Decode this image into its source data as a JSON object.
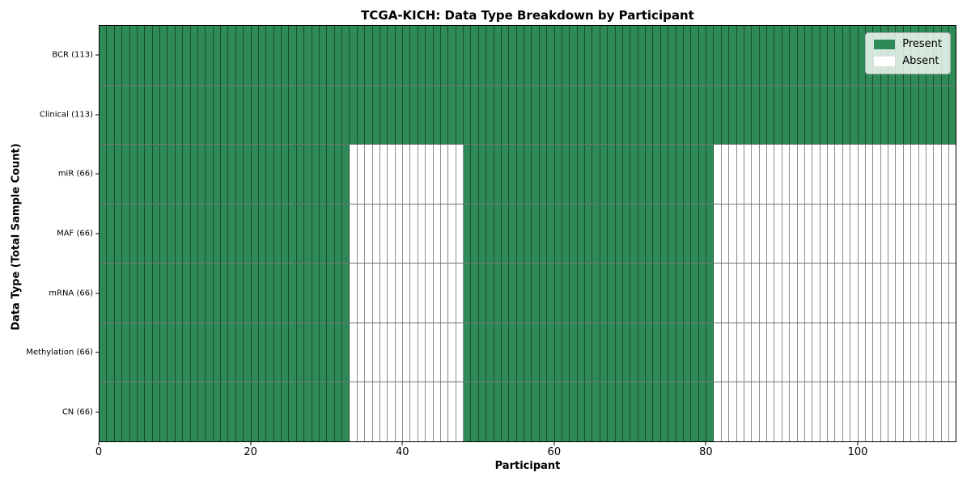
{
  "chart_data": {
    "type": "heatmap",
    "title": "TCGA-KICH: Data Type Breakdown by Participant",
    "xlabel": "Participant",
    "ylabel": "Data Type (Total Sample Count)",
    "n_participants": 113,
    "xlim": [
      0,
      113
    ],
    "xticks": [
      0,
      20,
      40,
      60,
      80,
      100
    ],
    "grid": "off",
    "colors": {
      "present": "#2e8b57",
      "absent": "#ffffff",
      "cell_edge": "rgba(0,0,0,0.45)"
    },
    "legend": {
      "position": "upper right",
      "items": [
        {
          "label": "Present",
          "color": "#2e8b57"
        },
        {
          "label": "Absent",
          "color": "#ffffff"
        }
      ]
    },
    "rows": [
      {
        "label": "BCR (113)",
        "total": 113,
        "present_ranges": [
          [
            0,
            112
          ]
        ]
      },
      {
        "label": "Clinical (113)",
        "total": 113,
        "present_ranges": [
          [
            0,
            112
          ]
        ]
      },
      {
        "label": "miR (66)",
        "total": 66,
        "present_ranges": [
          [
            0,
            32
          ],
          [
            48,
            80
          ]
        ]
      },
      {
        "label": "MAF (66)",
        "total": 66,
        "present_ranges": [
          [
            0,
            32
          ],
          [
            48,
            80
          ]
        ]
      },
      {
        "label": "mRNA (66)",
        "total": 66,
        "present_ranges": [
          [
            0,
            32
          ],
          [
            48,
            80
          ]
        ]
      },
      {
        "label": "Methylation (66)",
        "total": 66,
        "present_ranges": [
          [
            0,
            32
          ],
          [
            48,
            80
          ]
        ]
      },
      {
        "label": "CN (66)",
        "total": 66,
        "present_ranges": [
          [
            0,
            32
          ],
          [
            48,
            80
          ]
        ]
      }
    ]
  }
}
